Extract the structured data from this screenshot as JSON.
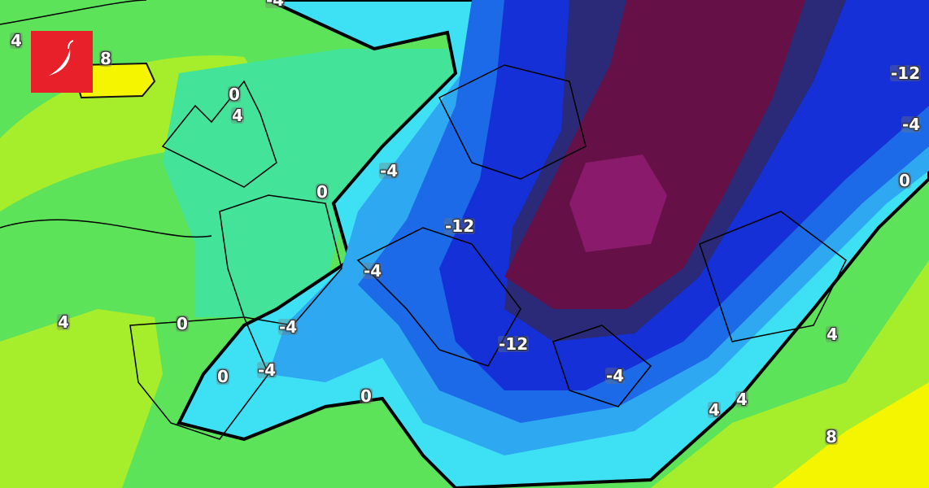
{
  "map": {
    "type": "temperature-contour-map",
    "colors": {
      "warm_yellow": "#f5f500",
      "yellow_green": "#a6ee2c",
      "green": "#5de35a",
      "teal_green": "#44e39a",
      "cyan": "#3ee0f4",
      "light_blue": "#2fa8f2",
      "blue": "#1c6ae8",
      "deep_blue": "#1430d6",
      "navy": "#2a2a78",
      "purple": "#661048",
      "magenta": "#8a1a6c",
      "logo_red": "#e8202a"
    },
    "logo_icon": "chili-pepper-icon",
    "contour_labels": [
      "4",
      "8",
      "0",
      "4",
      "-4",
      "-12",
      "-4",
      "0",
      "-4",
      "0",
      "-12",
      "-4",
      "4",
      "0",
      "-4",
      "-4",
      "0",
      "0",
      "-12",
      "-4",
      "4",
      "4",
      "4",
      "8"
    ]
  }
}
